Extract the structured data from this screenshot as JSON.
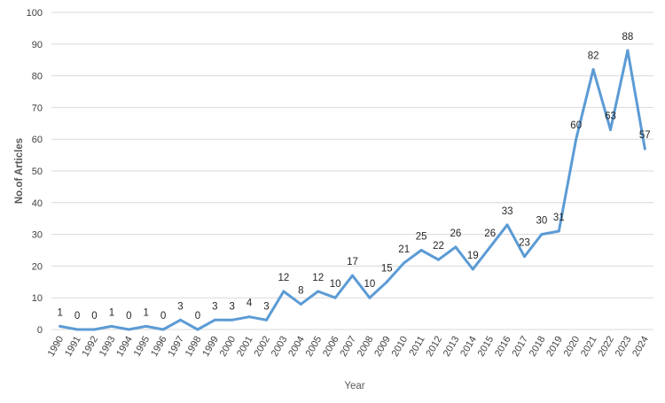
{
  "chart_data": {
    "type": "line",
    "title": "",
    "xlabel": "Year",
    "ylabel": "No.of Articles",
    "ylim": [
      0,
      100
    ],
    "yticks": [
      0,
      10,
      20,
      30,
      40,
      50,
      60,
      70,
      80,
      90,
      100
    ],
    "grid": true,
    "legend": "none",
    "series_color": "#5b9bd5",
    "categories": [
      "1990",
      "1991",
      "1992",
      "1993",
      "1994",
      "1995",
      "1996",
      "1997",
      "1998",
      "1999",
      "2000",
      "2001",
      "2002",
      "2003",
      "2004",
      "2005",
      "2006",
      "2007",
      "2008",
      "2009",
      "2010",
      "2011",
      "2012",
      "2013",
      "2014",
      "2015",
      "2016",
      "2017",
      "2018",
      "2019",
      "2020",
      "2021",
      "2022",
      "2023",
      "2024"
    ],
    "values": [
      1,
      0,
      0,
      1,
      0,
      1,
      0,
      3,
      0,
      3,
      3,
      4,
      3,
      12,
      8,
      12,
      10,
      17,
      10,
      15,
      21,
      25,
      22,
      26,
      19,
      26,
      33,
      23,
      30,
      31,
      60,
      82,
      63,
      88,
      57
    ]
  }
}
